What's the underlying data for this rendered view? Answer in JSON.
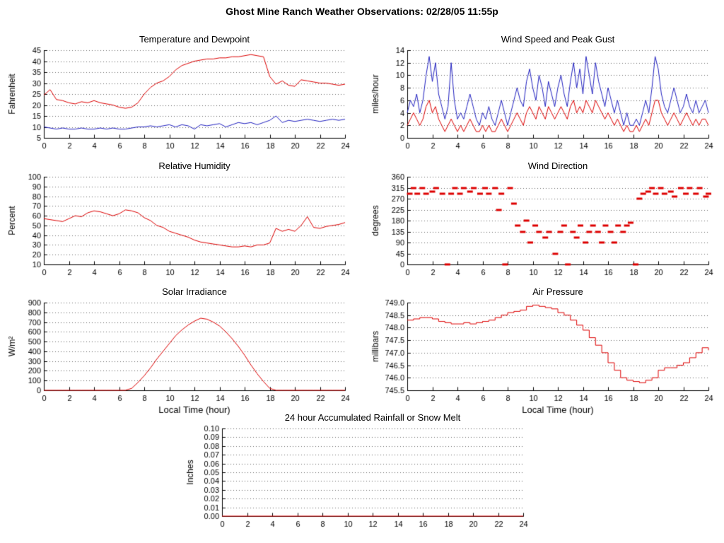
{
  "page_title": "Ghost Mine Ranch Weather Observations: 02/28/05 11:55p",
  "colors": {
    "red": "#dd0000",
    "blue": "#2020c0",
    "grid": "#666666",
    "axis": "#000000",
    "background": "#ffffff"
  },
  "chart_data": [
    {
      "id": "temperature-dewpoint",
      "type": "line",
      "title": "Temperature and Dewpoint",
      "ylabel": "Fahrenheit",
      "xlabel": "",
      "xlim": [
        0,
        24
      ],
      "ylim": [
        5,
        45
      ],
      "xticks": [
        0,
        2,
        4,
        6,
        8,
        10,
        12,
        14,
        16,
        18,
        20,
        22,
        24
      ],
      "yticks": [
        5,
        10,
        15,
        20,
        25,
        30,
        35,
        40,
        45
      ],
      "ytick_labels": [
        "5",
        "10",
        "15",
        "20",
        "25",
        "30",
        "35",
        "40",
        "45"
      ],
      "grid": true,
      "series": [
        {
          "name": "Temperature",
          "type": "line",
          "color": "#dd0000",
          "y": [
            24.5,
            27,
            22.5,
            22,
            21,
            20.5,
            21.5,
            21,
            22,
            21,
            20.5,
            20,
            19,
            18.5,
            19,
            21,
            25,
            28,
            30,
            31,
            33,
            36,
            38,
            39,
            40,
            40.5,
            41,
            41,
            41.5,
            41.5,
            42,
            42,
            42.5,
            43,
            42.5,
            42,
            33,
            29.5,
            31,
            29,
            28.5,
            31.5,
            31,
            30.5,
            30,
            30,
            29.5,
            29,
            29.5
          ]
        },
        {
          "name": "Dewpoint",
          "type": "line",
          "color": "#2020c0",
          "y": [
            10,
            9.5,
            9,
            9.5,
            9,
            9,
            9.5,
            9,
            9,
            9.5,
            9,
            9.5,
            9,
            9,
            9.5,
            10,
            10,
            10.5,
            10,
            10.5,
            11,
            10,
            11,
            10.5,
            9,
            11,
            10.5,
            11,
            11.5,
            10,
            11,
            12,
            11.5,
            12,
            11,
            12,
            13,
            15,
            12,
            13,
            12.5,
            13,
            13.5,
            13,
            12.5,
            13,
            13.5,
            13,
            13.5
          ]
        }
      ]
    },
    {
      "id": "wind-speed-gust",
      "type": "line",
      "title": "Wind Speed and Peak Gust",
      "ylabel": "miles/hour",
      "xlabel": "",
      "xlim": [
        0,
        24
      ],
      "ylim": [
        0,
        14
      ],
      "xticks": [
        0,
        2,
        4,
        6,
        8,
        10,
        12,
        14,
        16,
        18,
        20,
        22,
        24
      ],
      "yticks": [
        0,
        2,
        4,
        6,
        8,
        10,
        12,
        14
      ],
      "ytick_labels": [
        "0",
        "2",
        "4",
        "6",
        "8",
        "10",
        "12",
        "14"
      ],
      "grid": true,
      "series": [
        {
          "name": "Peak Gust",
          "type": "line",
          "color": "#2020c0",
          "y": [
            4,
            6,
            5,
            7,
            4,
            6,
            10,
            13,
            9,
            12,
            7,
            5,
            3,
            5,
            12,
            6,
            3,
            4,
            3,
            5,
            7,
            5,
            3,
            2,
            4,
            3,
            5,
            3,
            2,
            4,
            6,
            4,
            2,
            4,
            6,
            8,
            6,
            5,
            9,
            11,
            8,
            6,
            10,
            8,
            5,
            9,
            7,
            5,
            8,
            10,
            7,
            5,
            9,
            12,
            8,
            11,
            7,
            13,
            10,
            7,
            12,
            9,
            7,
            5,
            8,
            6,
            4,
            6,
            4,
            2,
            4,
            2,
            2,
            3,
            2,
            4,
            6,
            4,
            8,
            13,
            11,
            7,
            5,
            4,
            6,
            8,
            6,
            4,
            5,
            7,
            5,
            4,
            6,
            4,
            5,
            6,
            4
          ]
        },
        {
          "name": "Wind Speed",
          "type": "line",
          "color": "#dd0000",
          "y": [
            2,
            3,
            4,
            3,
            2,
            3,
            5,
            6,
            4,
            5,
            3,
            2,
            1,
            2,
            3,
            2,
            1,
            2,
            1,
            2,
            3,
            2,
            1,
            1,
            2,
            1,
            2,
            1,
            1,
            2,
            3,
            2,
            1,
            2,
            3,
            4,
            3,
            2,
            4,
            5,
            4,
            3,
            5,
            4,
            3,
            5,
            4,
            3,
            4,
            5,
            4,
            3,
            5,
            6,
            4,
            5,
            4,
            6,
            5,
            4,
            6,
            5,
            4,
            3,
            4,
            3,
            2,
            3,
            2,
            1,
            2,
            1,
            1,
            2,
            1,
            2,
            3,
            2,
            4,
            6,
            6,
            4,
            3,
            2,
            3,
            4,
            3,
            2,
            3,
            4,
            3,
            2,
            3,
            2,
            3,
            3,
            2
          ]
        }
      ]
    },
    {
      "id": "relative-humidity",
      "type": "line",
      "title": "Relative Humidity",
      "ylabel": "Percent",
      "xlabel": "",
      "xlim": [
        0,
        24
      ],
      "ylim": [
        10,
        100
      ],
      "xticks": [
        0,
        2,
        4,
        6,
        8,
        10,
        12,
        14,
        16,
        18,
        20,
        22,
        24
      ],
      "yticks": [
        10,
        20,
        30,
        40,
        50,
        60,
        70,
        80,
        90,
        100
      ],
      "ytick_labels": [
        "10",
        "20",
        "30",
        "40",
        "50",
        "60",
        "70",
        "80",
        "90",
        "100"
      ],
      "grid": true,
      "series": [
        {
          "name": "Relative Humidity",
          "type": "line",
          "color": "#dd0000",
          "y": [
            57,
            56,
            55,
            54,
            57,
            60,
            59,
            63,
            65,
            64,
            62,
            60,
            62,
            66,
            65,
            63,
            58,
            55,
            50,
            48,
            44,
            42,
            40,
            38,
            35,
            33,
            32,
            31,
            30,
            29,
            28,
            28,
            29,
            28,
            30,
            30,
            32,
            47,
            44,
            46,
            44,
            50,
            59,
            48,
            47,
            49,
            50,
            51,
            53
          ]
        }
      ]
    },
    {
      "id": "wind-direction",
      "type": "scatter",
      "title": "Wind Direction",
      "ylabel": "degrees",
      "xlabel": "",
      "xlim": [
        0,
        24
      ],
      "ylim": [
        0,
        360
      ],
      "xticks": [
        0,
        2,
        4,
        6,
        8,
        10,
        12,
        14,
        16,
        18,
        20,
        22,
        24
      ],
      "yticks": [
        0,
        45,
        90,
        135,
        180,
        225,
        270,
        315,
        360
      ],
      "ytick_labels": [
        "0",
        "45",
        "90",
        "135",
        "180",
        "225",
        "270",
        "315",
        "360"
      ],
      "grid": true,
      "series": [
        {
          "name": "Wind Direction",
          "type": "dash",
          "color": "#dd0000",
          "points": [
            [
              0.2,
              290
            ],
            [
              0.5,
              315
            ],
            [
              0.8,
              290
            ],
            [
              1.2,
              315
            ],
            [
              1.5,
              290
            ],
            [
              2.0,
              300
            ],
            [
              2.3,
              315
            ],
            [
              2.8,
              290
            ],
            [
              3.2,
              0
            ],
            [
              3.5,
              290
            ],
            [
              3.8,
              315
            ],
            [
              4.2,
              290
            ],
            [
              4.5,
              315
            ],
            [
              5.0,
              300
            ],
            [
              5.3,
              315
            ],
            [
              5.8,
              290
            ],
            [
              6.2,
              315
            ],
            [
              6.5,
              290
            ],
            [
              7.0,
              315
            ],
            [
              7.3,
              225
            ],
            [
              7.5,
              290
            ],
            [
              7.8,
              0
            ],
            [
              8.2,
              315
            ],
            [
              8.5,
              250
            ],
            [
              8.8,
              160
            ],
            [
              9.2,
              135
            ],
            [
              9.5,
              180
            ],
            [
              9.8,
              90
            ],
            [
              10.2,
              160
            ],
            [
              10.5,
              135
            ],
            [
              11.0,
              110
            ],
            [
              11.3,
              135
            ],
            [
              11.8,
              45
            ],
            [
              12.2,
              135
            ],
            [
              12.5,
              160
            ],
            [
              12.8,
              0
            ],
            [
              13.2,
              135
            ],
            [
              13.5,
              110
            ],
            [
              13.8,
              160
            ],
            [
              14.2,
              90
            ],
            [
              14.5,
              135
            ],
            [
              14.8,
              160
            ],
            [
              15.2,
              135
            ],
            [
              15.5,
              90
            ],
            [
              15.8,
              160
            ],
            [
              16.2,
              135
            ],
            [
              16.5,
              90
            ],
            [
              16.8,
              160
            ],
            [
              17.2,
              135
            ],
            [
              17.5,
              160
            ],
            [
              17.8,
              170
            ],
            [
              18.2,
              0
            ],
            [
              18.5,
              270
            ],
            [
              18.8,
              290
            ],
            [
              19.2,
              300
            ],
            [
              19.5,
              315
            ],
            [
              19.8,
              290
            ],
            [
              20.2,
              315
            ],
            [
              20.5,
              290
            ],
            [
              21.0,
              300
            ],
            [
              21.3,
              280
            ],
            [
              21.8,
              315
            ],
            [
              22.2,
              290
            ],
            [
              22.5,
              315
            ],
            [
              23.0,
              290
            ],
            [
              23.3,
              315
            ],
            [
              23.8,
              280
            ],
            [
              24.0,
              290
            ]
          ]
        }
      ]
    },
    {
      "id": "solar-irradiance",
      "type": "line",
      "title": "Solar Irradiance",
      "ylabel": "W/m²",
      "xlabel": "Local Time (hour)",
      "xlim": [
        0,
        24
      ],
      "ylim": [
        0,
        900
      ],
      "xticks": [
        0,
        2,
        4,
        6,
        8,
        10,
        12,
        14,
        16,
        18,
        20,
        22,
        24
      ],
      "yticks": [
        0,
        100,
        200,
        300,
        400,
        500,
        600,
        700,
        800,
        900
      ],
      "ytick_labels": [
        "0",
        "100",
        "200",
        "300",
        "400",
        "500",
        "600",
        "700",
        "800",
        "900"
      ],
      "grid": true,
      "series": [
        {
          "name": "Solar Irradiance",
          "type": "line",
          "color": "#dd0000",
          "y": [
            0,
            0,
            0,
            0,
            0,
            0,
            0,
            0,
            0,
            0,
            0,
            0,
            0,
            0,
            20,
            80,
            150,
            230,
            320,
            400,
            480,
            560,
            620,
            670,
            710,
            740,
            730,
            700,
            660,
            600,
            530,
            450,
            360,
            260,
            170,
            90,
            20,
            0,
            0,
            0,
            0,
            0,
            0,
            0,
            0,
            0,
            0,
            0,
            0
          ]
        }
      ]
    },
    {
      "id": "air-pressure",
      "type": "line",
      "title": "Air Pressure",
      "ylabel": "millibars",
      "xlabel": "Local Time (hour)",
      "xlim": [
        0,
        24
      ],
      "ylim": [
        745.5,
        749.0
      ],
      "xticks": [
        0,
        2,
        4,
        6,
        8,
        10,
        12,
        14,
        16,
        18,
        20,
        22,
        24
      ],
      "yticks": [
        745.5,
        746.0,
        746.5,
        747.0,
        747.5,
        748.0,
        748.5,
        749.0
      ],
      "ytick_labels": [
        "745.5",
        "746.0",
        "746.5",
        "747.0",
        "747.5",
        "748.0",
        "748.5",
        "749.0"
      ],
      "grid": true,
      "series": [
        {
          "name": "Air Pressure",
          "type": "step",
          "color": "#dd0000",
          "y": [
            748.3,
            748.35,
            748.4,
            748.4,
            748.35,
            748.25,
            748.2,
            748.15,
            748.15,
            748.2,
            748.15,
            748.2,
            748.25,
            748.3,
            748.4,
            748.5,
            748.6,
            748.65,
            748.7,
            748.85,
            748.9,
            748.85,
            748.8,
            748.75,
            748.6,
            748.5,
            748.3,
            748.1,
            747.9,
            747.6,
            747.3,
            747.0,
            746.6,
            746.3,
            746.0,
            745.9,
            745.85,
            745.8,
            745.9,
            746.0,
            746.3,
            746.4,
            746.4,
            746.5,
            746.6,
            746.8,
            747.0,
            747.2,
            747.1
          ]
        }
      ]
    },
    {
      "id": "rainfall",
      "type": "line",
      "title": "24 hour Accumulated Rainfall or Snow Melt",
      "ylabel": "Inches",
      "xlabel": "",
      "xlim": [
        0,
        24
      ],
      "ylim": [
        0,
        0.1
      ],
      "xticks": [
        0,
        2,
        4,
        6,
        8,
        10,
        12,
        14,
        16,
        18,
        20,
        22,
        24
      ],
      "yticks": [
        0,
        0.01,
        0.02,
        0.03,
        0.04,
        0.05,
        0.06,
        0.07,
        0.08,
        0.09,
        0.1
      ],
      "ytick_labels": [
        "0.00",
        "0.01",
        "0.02",
        "0.03",
        "0.04",
        "0.05",
        "0.06",
        "0.07",
        "0.08",
        "0.09",
        "0.10"
      ],
      "grid": true,
      "series": [
        {
          "name": "Accumulated Rainfall",
          "type": "line",
          "color": "#dd0000",
          "x": [
            0,
            24
          ],
          "y": [
            0,
            0
          ]
        }
      ]
    }
  ]
}
